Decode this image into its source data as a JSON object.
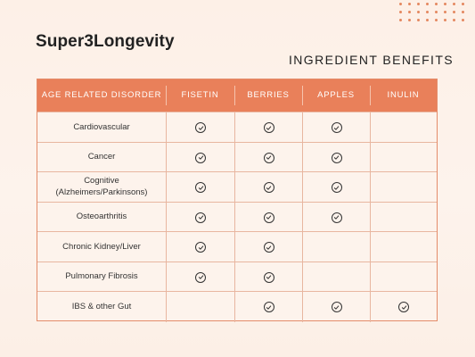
{
  "brand": "Super3Longevity",
  "subtitle": "INGREDIENT BENEFITS",
  "colors": {
    "header_bg": "#e9805a",
    "border": "#e48c6a",
    "background": "#fdf3ec",
    "dots": "#e4875f"
  },
  "table": {
    "headers": [
      "AGE RELATED DISORDER",
      "FISETIN",
      "BERRIES",
      "APPLES",
      "INULIN"
    ],
    "rows": [
      {
        "label": "Cardiovascular",
        "checks": [
          true,
          true,
          true,
          false
        ]
      },
      {
        "label": "Cancer",
        "checks": [
          true,
          true,
          true,
          false
        ]
      },
      {
        "label": "Cognitive\n(Alzheimers/Parkinsons)",
        "checks": [
          true,
          true,
          true,
          false
        ]
      },
      {
        "label": "Osteoarthritis",
        "checks": [
          true,
          true,
          true,
          false
        ]
      },
      {
        "label": "Chronic Kidney/Liver",
        "checks": [
          true,
          true,
          false,
          false
        ]
      },
      {
        "label": "Pulmonary Fibrosis",
        "checks": [
          true,
          true,
          false,
          false
        ]
      },
      {
        "label": "IBS & other Gut",
        "checks": [
          false,
          true,
          true,
          true
        ]
      }
    ],
    "check_icon": "check-circle-icon"
  }
}
